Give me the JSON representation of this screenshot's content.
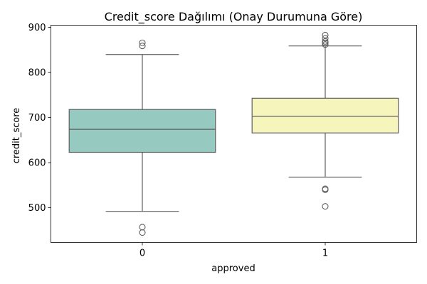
{
  "chart_data": {
    "type": "box",
    "title": "Credit_score Dağılımı (Onay Durumuna Göre)",
    "xlabel": "approved",
    "ylabel": "credit_score",
    "categories": [
      "0",
      "1"
    ],
    "ylim": [
      423,
      905
    ],
    "yticks": [
      500,
      600,
      700,
      800,
      900
    ],
    "grid": false,
    "boxes": [
      {
        "category": "0",
        "color": "#96cac1",
        "whisker_low": 492,
        "q1": 623,
        "median": 674,
        "q3": 718,
        "whisker_high": 840,
        "outliers": [
          445,
          457,
          859,
          866
        ]
      },
      {
        "category": "1",
        "color": "#f6f6bc",
        "whisker_low": 568,
        "q1": 666,
        "median": 703,
        "q3": 743,
        "whisker_high": 859,
        "outliers": [
          503,
          540,
          542,
          862,
          866,
          869,
          876,
          883
        ]
      }
    ]
  }
}
